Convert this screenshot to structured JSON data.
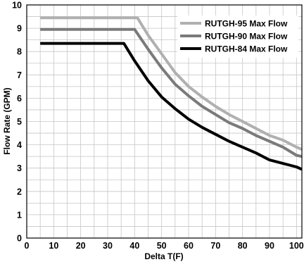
{
  "chart_data": {
    "type": "line",
    "xlabel": "Delta T(F)",
    "ylabel": "Flow Rate (GPM)",
    "xlim": [
      0,
      102
    ],
    "ylim": [
      0,
      10
    ],
    "xticks": [
      0,
      10,
      20,
      30,
      40,
      50,
      60,
      70,
      80,
      90,
      100
    ],
    "yticks": [
      0,
      1,
      2,
      3,
      4,
      5,
      6,
      7,
      8,
      9,
      10
    ],
    "grid": true,
    "legend_position": "top-right",
    "series": [
      {
        "name": "RUTGH-95 Max Flow",
        "color": "#b0b0b0",
        "x": [
          5,
          10,
          20,
          30,
          41,
          45,
          50,
          55,
          60,
          65,
          70,
          75,
          80,
          85,
          90,
          95,
          100,
          102
        ],
        "y": [
          9.45,
          9.45,
          9.45,
          9.45,
          9.45,
          8.7,
          7.9,
          7.1,
          6.5,
          6.05,
          5.65,
          5.3,
          5.0,
          4.7,
          4.4,
          4.2,
          3.9,
          3.8
        ]
      },
      {
        "name": "RUTGH-90 Max Flow",
        "color": "#7a7a7a",
        "x": [
          5,
          10,
          20,
          30,
          40,
          45,
          50,
          55,
          60,
          65,
          70,
          75,
          80,
          85,
          90,
          95,
          100,
          102
        ],
        "y": [
          8.95,
          8.95,
          8.95,
          8.95,
          8.95,
          8.1,
          7.3,
          6.6,
          6.1,
          5.65,
          5.3,
          4.95,
          4.7,
          4.4,
          4.15,
          3.9,
          3.55,
          3.5
        ]
      },
      {
        "name": "RUTGH-84 Max Flow",
        "color": "#000000",
        "x": [
          5,
          10,
          20,
          30,
          36,
          40,
          45,
          50,
          55,
          60,
          65,
          70,
          75,
          80,
          85,
          90,
          95,
          100,
          102
        ],
        "y": [
          8.35,
          8.35,
          8.35,
          8.35,
          8.35,
          7.6,
          6.75,
          6.05,
          5.55,
          5.1,
          4.75,
          4.45,
          4.15,
          3.9,
          3.65,
          3.35,
          3.2,
          3.05,
          2.95
        ]
      }
    ]
  }
}
